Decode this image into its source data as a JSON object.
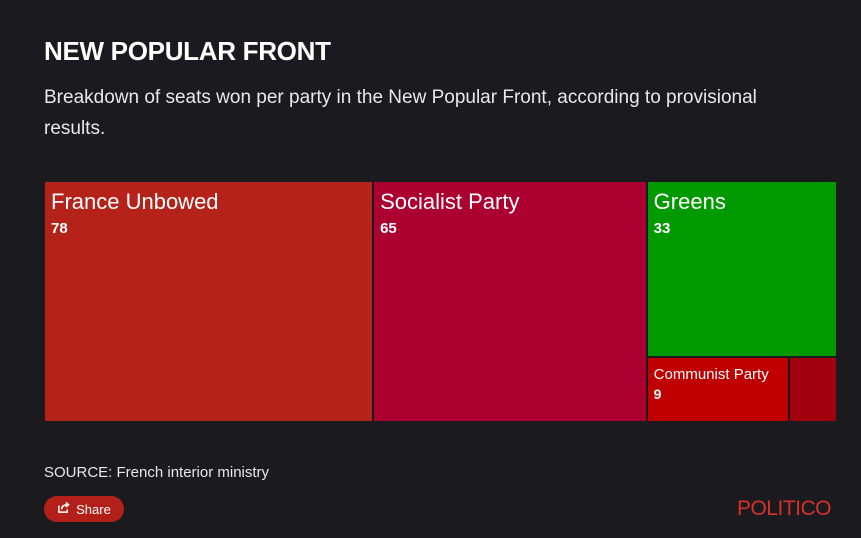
{
  "header": {
    "title": "NEW POPULAR FRONT",
    "subtitle": "Breakdown of seats won per party in the New Popular Front, according to provisional results."
  },
  "chart_data": {
    "type": "treemap",
    "title": "NEW POPULAR FRONT",
    "subtitle": "Breakdown of seats won per party in the New Popular Front, according to provisional results.",
    "items": [
      {
        "name": "France Unbowed",
        "value": 78,
        "color": "#b5221a"
      },
      {
        "name": "Socialist Party",
        "value": 65,
        "color": "#ab0030"
      },
      {
        "name": "Greens",
        "value": 33,
        "color": "#009900"
      },
      {
        "name": "Communist Party",
        "value": 9,
        "color": "#c00000"
      },
      {
        "name": "",
        "value": null,
        "color": "#a3000f"
      }
    ]
  },
  "footer": {
    "source": "SOURCE: French interior ministry",
    "share_label": "Share",
    "share_icon": "share-icon",
    "brand": "POLITICO",
    "brand_color": "#d6302a"
  }
}
